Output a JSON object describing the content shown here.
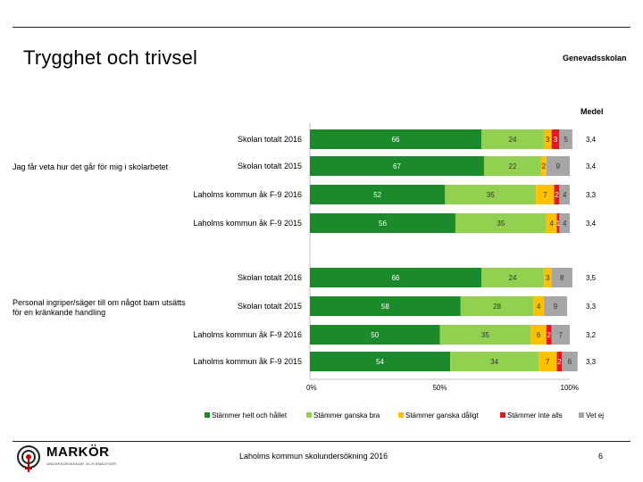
{
  "header": {
    "title": "Trygghet och trivsel",
    "school": "Genevadsskolan"
  },
  "footer": {
    "text": "Laholms kommun skolundersökning 2016",
    "page_number": "6",
    "logo_name": "MARKÖR",
    "logo_sub": "UNDERSÖKNINGAR OCH ANALYSER"
  },
  "colors": {
    "helt": "#1b8a2b",
    "ganska_bra": "#92d050",
    "ganska_daligt": "#ffc000",
    "inte_alls": "#e31a1c",
    "vet_ej": "#a6a6a6"
  },
  "chart_data": {
    "type": "bar",
    "orientation": "horizontal-stacked-100",
    "mean_header": "Medel",
    "x_ticks": [
      "0%",
      "50%",
      "100%"
    ],
    "xlim": [
      0,
      100
    ],
    "legend": [
      {
        "key": "helt",
        "label": "Stämmer helt och hållet"
      },
      {
        "key": "ganska_bra",
        "label": "Stämmer ganska bra"
      },
      {
        "key": "ganska_daligt",
        "label": "Stämmer ganska dåligt"
      },
      {
        "key": "inte_alls",
        "label": "Stämmer inte alls"
      },
      {
        "key": "vet_ej",
        "label": "Vet ej"
      }
    ],
    "groups": [
      {
        "question": "Jag får veta hur det går för mig i skolarbetet",
        "rows": [
          {
            "label": "Skolan totalt 2016",
            "values": [
              66,
              24,
              3,
              3,
              5
            ],
            "mean": "3,4"
          },
          {
            "label": "Skolan totalt 2015",
            "values": [
              67,
              22,
              2,
              0,
              9
            ],
            "mean": "3,4"
          },
          {
            "label": "Laholms kommun åk F-9 2016",
            "values": [
              52,
              35,
              7,
              2,
              4
            ],
            "mean": "3,3"
          },
          {
            "label": "Laholms kommun åk F-9 2015",
            "values": [
              56,
              35,
              4,
              1,
              4
            ],
            "mean": "3,4"
          }
        ]
      },
      {
        "question": "Personal ingriper/säger till om något barn utsätts för en kränkande handling",
        "rows": [
          {
            "label": "Skolan totalt 2016",
            "values": [
              66,
              24,
              3,
              0,
              8
            ],
            "mean": "3,5"
          },
          {
            "label": "Skolan totalt 2015",
            "values": [
              58,
              28,
              4,
              0,
              9
            ],
            "mean": "3,3"
          },
          {
            "label": "Laholms kommun åk F-9 2016",
            "values": [
              50,
              35,
              6,
              2,
              7
            ],
            "mean": "3,2"
          },
          {
            "label": "Laholms kommun åk F-9 2015",
            "values": [
              54,
              34,
              7,
              2,
              6
            ],
            "mean": "3,3"
          }
        ]
      }
    ]
  }
}
